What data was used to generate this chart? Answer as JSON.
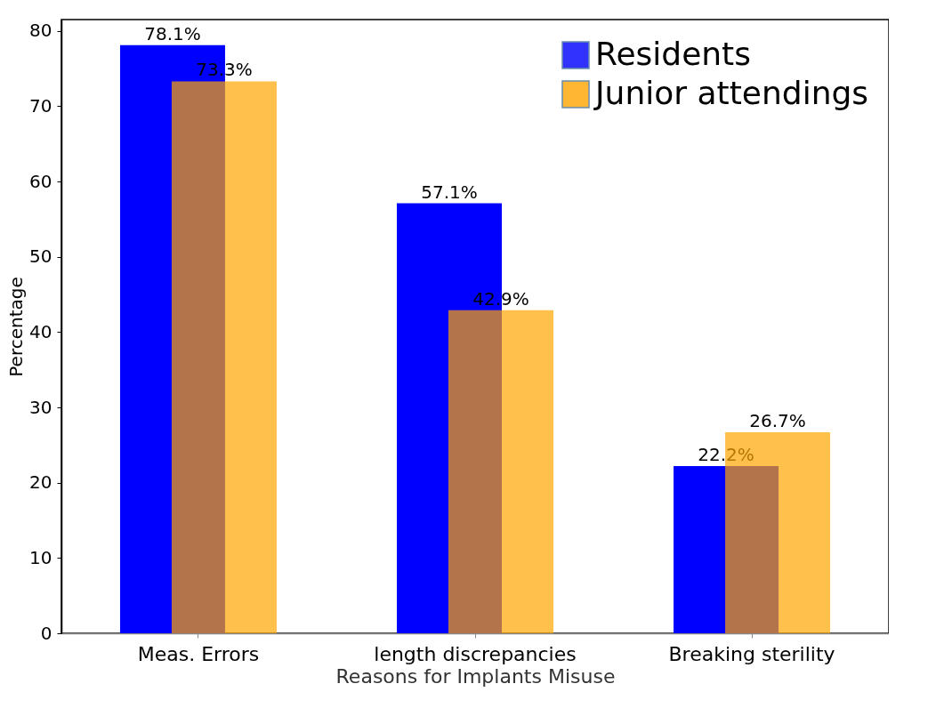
{
  "chart_data": {
    "type": "bar",
    "xlabel": "Reasons for Implants Misuse",
    "ylabel": "Percentage",
    "categories": [
      "Meas. Errors",
      "length discrepancies",
      "Breaking sterility"
    ],
    "series": [
      {
        "name": "Residents",
        "color": "#0000ff",
        "values": [
          78.1,
          57.1,
          22.2
        ],
        "value_labels": [
          "78.1%",
          "57.1%",
          "22.2%"
        ]
      },
      {
        "name": "Junior attendings",
        "color": "#ffa500",
        "values": [
          73.3,
          42.9,
          26.7
        ],
        "value_labels": [
          "73.3%",
          "42.9%",
          "26.7%"
        ]
      }
    ],
    "ylim": [
      0,
      81.5
    ],
    "yticks": [
      0,
      10,
      20,
      30,
      40,
      50,
      60,
      70,
      80
    ],
    "grid": false,
    "legend": "top right"
  }
}
